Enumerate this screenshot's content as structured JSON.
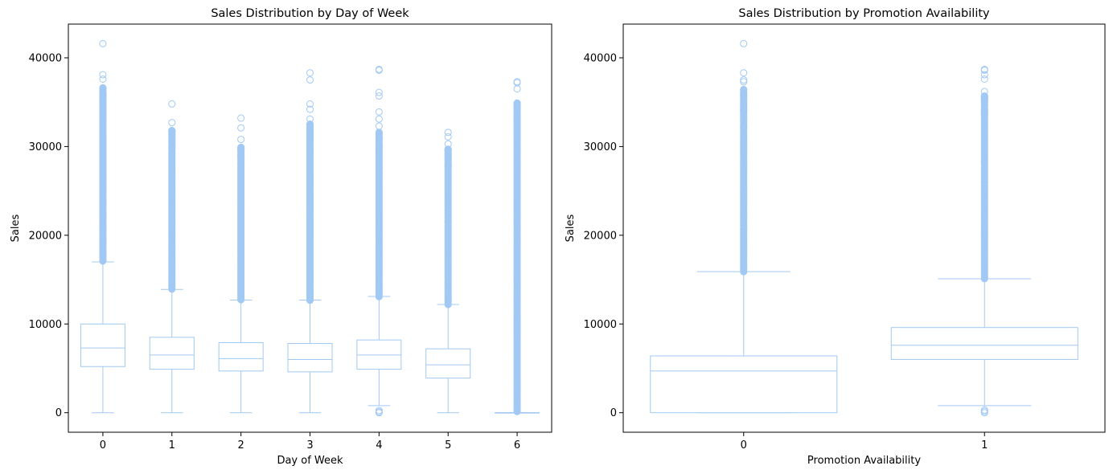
{
  "chart_data": [
    {
      "type": "box",
      "title": "Sales Distribution by Day of Week",
      "xlabel": "Day of Week",
      "ylabel": "Sales",
      "categories": [
        "0",
        "1",
        "2",
        "3",
        "4",
        "5",
        "6"
      ],
      "yticks": [
        0,
        10000,
        20000,
        30000,
        40000
      ],
      "ylim": [
        -2200,
        43800
      ],
      "box_color": "#a1c9f4",
      "boxes": [
        {
          "category": "0",
          "whisker_low": 0,
          "q1": 5200,
          "median": 7300,
          "q3": 10000,
          "whisker_high": 17000,
          "outlier_min": 17100,
          "outlier_max": 41600,
          "sparse_outliers": [
            36600,
            37600,
            38100,
            41600
          ]
        },
        {
          "category": "1",
          "whisker_low": 0,
          "q1": 4900,
          "median": 6500,
          "q3": 8500,
          "whisker_high": 13900,
          "outlier_min": 13900,
          "outlier_max": 34800,
          "sparse_outliers": [
            31800,
            32700,
            34800
          ]
        },
        {
          "category": "2",
          "whisker_low": 0,
          "q1": 4700,
          "median": 6100,
          "q3": 7900,
          "whisker_high": 12700,
          "outlier_min": 12700,
          "outlier_max": 33200,
          "sparse_outliers": [
            29900,
            30800,
            32100,
            33200
          ]
        },
        {
          "category": "3",
          "whisker_low": 0,
          "q1": 4600,
          "median": 6000,
          "q3": 7800,
          "whisker_high": 12700,
          "outlier_min": 12700,
          "outlier_max": 38300,
          "sparse_outliers": [
            32500,
            33100,
            34200,
            34800,
            37500,
            38300
          ]
        },
        {
          "category": "4",
          "whisker_low": 800,
          "q1": 4900,
          "median": 6500,
          "q3": 8200,
          "whisker_high": 13100,
          "outlier_min": 13100,
          "outlier_max": 38700,
          "low_outliers": [
            0,
            100,
            250
          ],
          "sparse_outliers": [
            31600,
            32300,
            33100,
            33900,
            35700,
            36100,
            38600,
            38700
          ]
        },
        {
          "category": "5",
          "whisker_low": 0,
          "q1": 3900,
          "median": 5400,
          "q3": 7200,
          "whisker_high": 12200,
          "outlier_min": 12200,
          "outlier_max": 31600,
          "sparse_outliers": [
            29700,
            30300,
            31100,
            31600
          ]
        },
        {
          "category": "6",
          "whisker_low": 0,
          "q1": 0,
          "median": 0,
          "q3": 0,
          "whisker_high": 0,
          "outlier_min": 100,
          "outlier_max": 37300,
          "sparse_outliers": [
            34900,
            36500,
            37200,
            37300
          ]
        }
      ]
    },
    {
      "type": "box",
      "title": "Sales Distribution by Promotion Availability",
      "xlabel": "Promotion Availability",
      "ylabel": "Sales",
      "categories": [
        "0",
        "1"
      ],
      "yticks": [
        0,
        10000,
        20000,
        30000,
        40000
      ],
      "ylim": [
        -2200,
        43800
      ],
      "box_color": "#a1c9f4",
      "boxes": [
        {
          "category": "0",
          "whisker_low": 0,
          "q1": 0,
          "median": 4700,
          "q3": 6400,
          "whisker_high": 15900,
          "outlier_min": 15900,
          "outlier_max": 41600,
          "sparse_outliers": [
            36400,
            37300,
            37500,
            38300,
            41600
          ]
        },
        {
          "category": "1",
          "whisker_low": 800,
          "q1": 6000,
          "median": 7600,
          "q3": 9600,
          "whisker_high": 15100,
          "outlier_min": 15100,
          "outlier_max": 38700,
          "low_outliers": [
            0,
            150,
            300
          ],
          "sparse_outliers": [
            35700,
            36200,
            37600,
            38100,
            38600,
            38700
          ]
        }
      ]
    }
  ]
}
